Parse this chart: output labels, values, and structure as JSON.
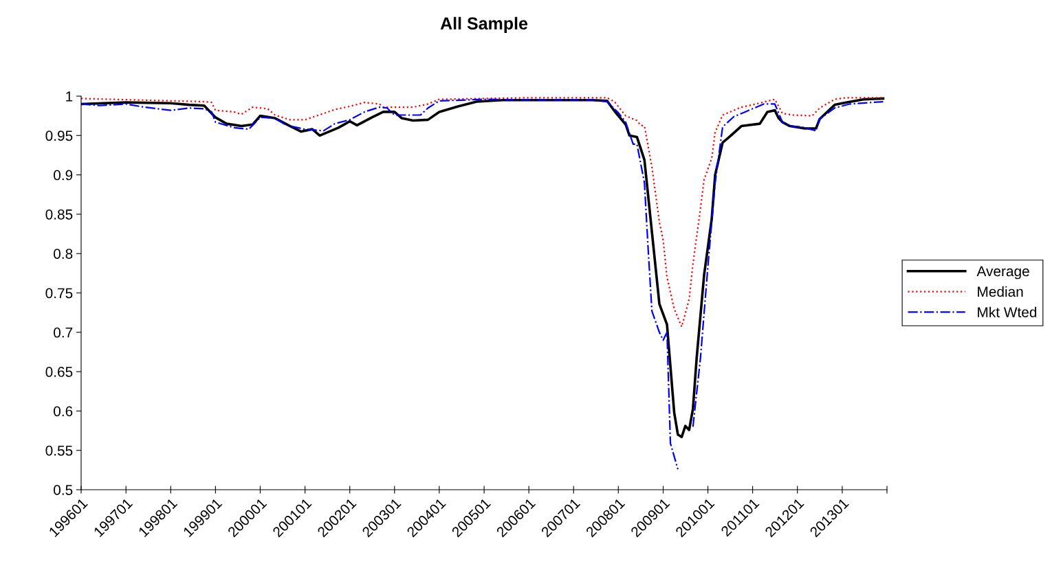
{
  "chart_data": {
    "type": "line",
    "title": "All Sample",
    "xlim": [
      "1996-01",
      "2014-01"
    ],
    "xticks": [
      {
        "value": "1996-01",
        "label": "199601"
      },
      {
        "value": "1997-01",
        "label": "199701"
      },
      {
        "value": "1998-01",
        "label": "199801"
      },
      {
        "value": "1999-01",
        "label": "199901"
      },
      {
        "value": "2000-01",
        "label": "200001"
      },
      {
        "value": "2001-01",
        "label": "200101"
      },
      {
        "value": "2002-01",
        "label": "200201"
      },
      {
        "value": "2003-01",
        "label": "200301"
      },
      {
        "value": "2004-01",
        "label": "200401"
      },
      {
        "value": "2005-01",
        "label": "200501"
      },
      {
        "value": "2006-01",
        "label": "200601"
      },
      {
        "value": "2007-01",
        "label": "200701"
      },
      {
        "value": "2008-01",
        "label": "200801"
      },
      {
        "value": "2009-01",
        "label": "200901"
      },
      {
        "value": "2010-01",
        "label": "201001"
      },
      {
        "value": "2011-01",
        "label": "201101"
      },
      {
        "value": "2012-01",
        "label": "201201"
      },
      {
        "value": "2013-01",
        "label": "201301"
      },
      {
        "value": "2014-01",
        "label": null
      }
    ],
    "ylim": [
      0.5,
      1
    ],
    "yticks": [
      0.5,
      0.55,
      0.6,
      0.65,
      0.7,
      0.75,
      0.8,
      0.85,
      0.9,
      0.95,
      1
    ],
    "grid": false,
    "legend": "right",
    "marker": "none",
    "series": [
      {
        "name": "Average",
        "color": "#000000",
        "line_style": "solid",
        "x": [
          "1996-01",
          "1997-01",
          "1998-01",
          "1998-06",
          "1998-10",
          "1999-01",
          "1999-04",
          "1999-08",
          "1999-11",
          "2000-01",
          "2000-05",
          "2000-09",
          "2000-12",
          "2001-03",
          "2001-05",
          "2001-10",
          "2002-01",
          "2002-03",
          "2002-07",
          "2002-10",
          "2003-01",
          "2003-03",
          "2003-06",
          "2003-10",
          "2004-01",
          "2004-06",
          "2004-11",
          "2005-06",
          "2006-06",
          "2007-06",
          "2007-10",
          "2007-12",
          "2008-03",
          "2008-04",
          "2008-06",
          "2008-08",
          "2008-12",
          "2009-02",
          "2009-04",
          "2009-05",
          "2009-06",
          "2009-07",
          "2009-08",
          "2009-09",
          "2009-10",
          "2009-12",
          "2010-02",
          "2010-03",
          "2010-05",
          "2010-07",
          "2010-10",
          "2011-03",
          "2011-05",
          "2011-07",
          "2011-08",
          "2011-09",
          "2011-11",
          "2012-03",
          "2012-06",
          "2012-07",
          "2012-11",
          "2013-02",
          "2013-07",
          "2013-12"
        ],
        "values": [
          0.99,
          0.992,
          0.991,
          0.989,
          0.988,
          0.973,
          0.965,
          0.962,
          0.964,
          0.975,
          0.972,
          0.962,
          0.955,
          0.958,
          0.95,
          0.96,
          0.968,
          0.963,
          0.973,
          0.98,
          0.98,
          0.972,
          0.969,
          0.97,
          0.98,
          0.987,
          0.993,
          0.995,
          0.995,
          0.995,
          0.994,
          0.981,
          0.964,
          0.95,
          0.948,
          0.919,
          0.736,
          0.71,
          0.598,
          0.57,
          0.567,
          0.581,
          0.576,
          0.603,
          0.667,
          0.773,
          0.844,
          0.9,
          0.941,
          0.949,
          0.962,
          0.965,
          0.98,
          0.982,
          0.972,
          0.967,
          0.962,
          0.959,
          0.959,
          0.971,
          0.989,
          0.992,
          0.996,
          0.997
        ]
      },
      {
        "name": "Median",
        "color": "#ff0000",
        "line_style": "dotted",
        "x": [
          "1996-01",
          "1998-10",
          "1998-12",
          "1999-01",
          "1999-06",
          "1999-08",
          "1999-11",
          "2000-03",
          "2000-05",
          "2000-09",
          "2001-01",
          "2001-06",
          "2001-09",
          "2002-01",
          "2002-05",
          "2002-09",
          "2002-10",
          "2003-06",
          "2003-10",
          "2004-01",
          "2005-01",
          "2006-01",
          "2007-10",
          "2007-12",
          "2008-03",
          "2008-06",
          "2008-07",
          "2008-08",
          "2008-10",
          "2008-12",
          "2009-01",
          "2009-02",
          "2009-04",
          "2009-06",
          "2009-08",
          "2009-09",
          "2009-11",
          "2009-12",
          "2010-02",
          "2010-03",
          "2010-05",
          "2010-10",
          "2011-01",
          "2011-07",
          "2011-09",
          "2011-12",
          "2012-05",
          "2012-07",
          "2012-11",
          "2013-02",
          "2013-12"
        ],
        "values": [
          0.997,
          0.993,
          0.992,
          0.982,
          0.98,
          0.977,
          0.986,
          0.984,
          0.976,
          0.97,
          0.97,
          0.978,
          0.983,
          0.987,
          0.992,
          0.99,
          0.986,
          0.986,
          0.99,
          0.996,
          0.997,
          0.998,
          0.998,
          0.993,
          0.975,
          0.969,
          0.963,
          0.962,
          0.91,
          0.84,
          0.817,
          0.77,
          0.73,
          0.707,
          0.742,
          0.787,
          0.857,
          0.894,
          0.921,
          0.954,
          0.976,
          0.986,
          0.989,
          0.996,
          0.978,
          0.976,
          0.975,
          0.985,
          0.996,
          0.998,
          0.998
        ]
      },
      {
        "name": "Mkt Wted",
        "color": "#0000ff",
        "line_style": "dashdot",
        "x": [
          "1996-01",
          "1996-06",
          "1997-01",
          "1997-06",
          "1998-01",
          "1998-06",
          "1998-10",
          "1998-12",
          "1999-01",
          "1999-06",
          "1999-10",
          "2000-01",
          "2000-05",
          "2000-08",
          "2001-01",
          "2001-06",
          "2001-09",
          "2002-01",
          "2002-05",
          "2002-09",
          "2002-11",
          "2003-01",
          "2003-08",
          "2003-10",
          "2004-01",
          "2005-01",
          "2006-01",
          "2007-06",
          "2007-10",
          "2008-01",
          "2008-03",
          "2008-05",
          "2008-06",
          "2008-08",
          "2008-09",
          "2008-10",
          "2008-12",
          "2009-01",
          "2009-02",
          "2009-03",
          "2009-05",
          "2009-06",
          "2009-07",
          "2009-08",
          "2009-09",
          "2009-11",
          "2010-01",
          "2010-03",
          "2010-05",
          "2010-08",
          "2010-10",
          "2010-11",
          "2011-04",
          "2011-07",
          "2011-09",
          "2011-11",
          "2012-02",
          "2012-06",
          "2012-07",
          "2012-11",
          "2013-03",
          "2013-12"
        ],
        "values": [
          0.99,
          0.988,
          0.99,
          0.986,
          0.982,
          0.985,
          0.984,
          0.98,
          0.967,
          0.96,
          0.958,
          0.973,
          0.972,
          0.963,
          0.958,
          0.956,
          0.965,
          0.97,
          0.98,
          0.986,
          0.985,
          0.976,
          0.976,
          0.985,
          0.994,
          0.996,
          0.995,
          0.995,
          0.993,
          0.979,
          0.967,
          0.939,
          0.939,
          0.89,
          0.804,
          0.727,
          0.7,
          0.69,
          0.7,
          0.559,
          0.526,
          null,
          null,
          null,
          0.58,
          0.667,
          0.784,
          0.89,
          0.961,
          0.974,
          0.978,
          0.98,
          0.99,
          0.99,
          0.967,
          0.962,
          0.961,
          0.956,
          0.971,
          0.985,
          0.99,
          0.993
        ]
      }
    ]
  }
}
